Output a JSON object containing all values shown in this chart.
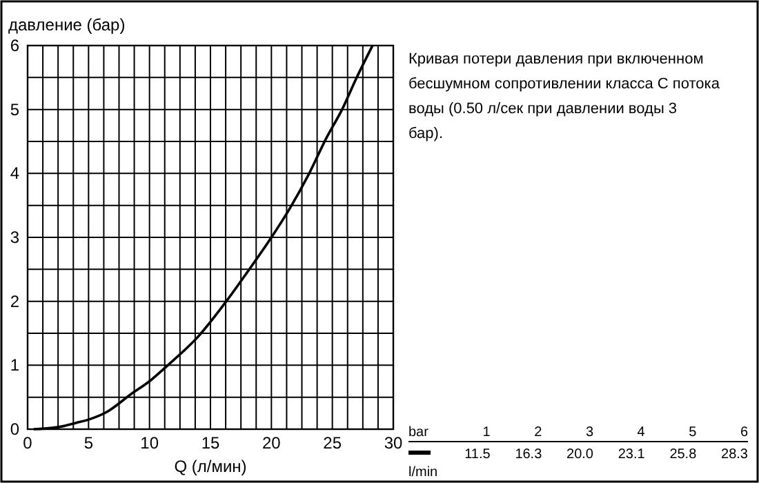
{
  "chart_data": {
    "type": "line",
    "xlabel": "Q (л/мин)",
    "ylabel": "давление (бар)",
    "annotations": [
      "Кривая потери давления при включенном бесшумном сопротивлении класса C потока воды (0.50 л/сек при давлении воды 3 бар).",
      "bar",
      "1",
      "2",
      "3",
      "4",
      "5",
      "6",
      "l/min",
      "11.5",
      "16.3",
      "20.0",
      "23.1",
      "25.8",
      "28.3"
    ],
    "xlim": [
      0,
      30
    ],
    "ylim": [
      0,
      6
    ],
    "xticks": [
      0,
      {
        "value": 1.25,
        "label": null
      },
      {
        "value": 2.5,
        "label": null
      },
      {
        "value": 3.75,
        "label": null
      },
      5,
      {
        "value": 6.25,
        "label": null
      },
      {
        "value": 7.5,
        "label": null
      },
      {
        "value": 8.75,
        "label": null
      },
      10,
      {
        "value": 11.25,
        "label": null
      },
      {
        "value": 12.5,
        "label": null
      },
      {
        "value": 13.75,
        "label": null
      },
      15,
      {
        "value": 16.25,
        "label": null
      },
      {
        "value": 17.5,
        "label": null
      },
      {
        "value": 18.75,
        "label": null
      },
      20,
      {
        "value": 21.25,
        "label": null
      },
      {
        "value": 22.5,
        "label": null
      },
      {
        "value": 23.75,
        "label": null
      },
      25,
      {
        "value": 26.25,
        "label": null
      },
      {
        "value": 27.5,
        "label": null
      },
      {
        "value": 28.75,
        "label": null
      },
      30
    ],
    "yticks": [
      0,
      {
        "value": 0.5,
        "label": null
      },
      1,
      {
        "value": 1.5,
        "label": null
      },
      2,
      {
        "value": 2.5,
        "label": null
      },
      3,
      {
        "value": 3.5,
        "label": null
      },
      4,
      {
        "value": 4.5,
        "label": null
      },
      5,
      {
        "value": 5.5,
        "label": null
      },
      6
    ],
    "grid": true,
    "line_style": "solid",
    "marker": "none",
    "series": [
      {
        "color": "#000000",
        "x": [
          0.5,
          2,
          3,
          4,
          5,
          6.5,
          8.5,
          10,
          11.5,
          14,
          16.3,
          18,
          20,
          21.5,
          23.1,
          24.5,
          25.8,
          27,
          28.3
        ],
        "values": [
          0,
          0.02,
          0.05,
          0.1,
          0.15,
          0.27,
          0.55,
          0.75,
          1,
          1.45,
          2,
          2.45,
          3,
          3.45,
          4,
          4.55,
          5,
          5.5,
          6
        ]
      }
    ]
  }
}
